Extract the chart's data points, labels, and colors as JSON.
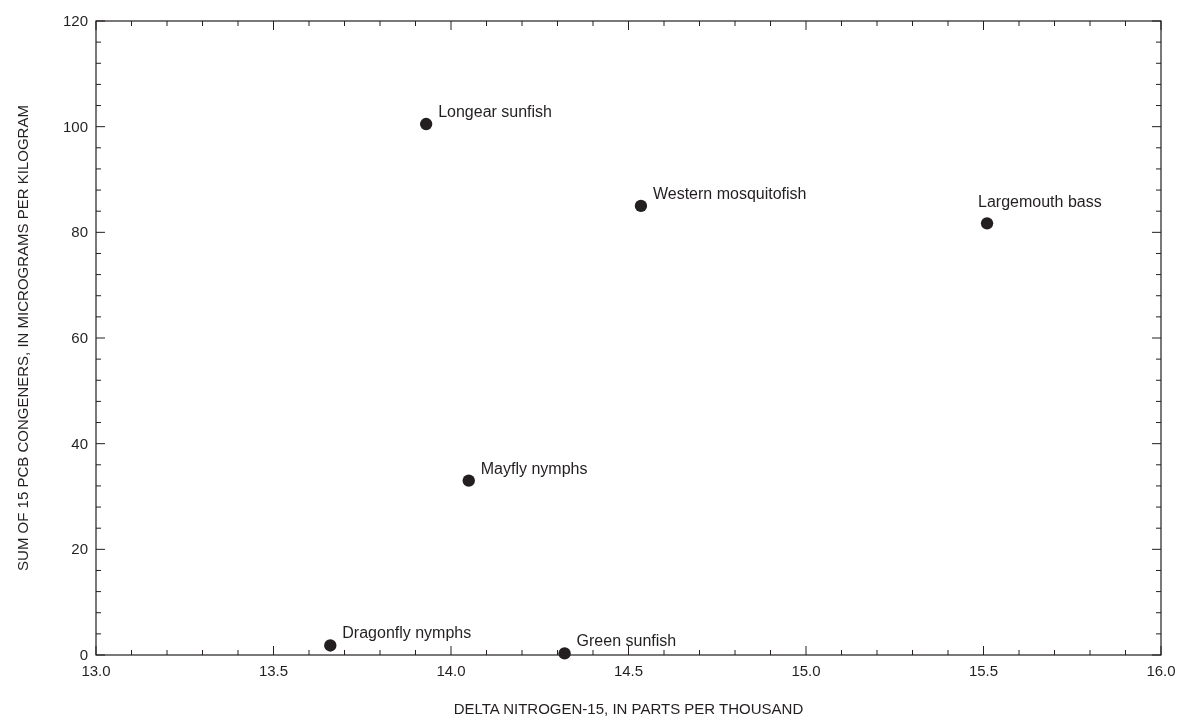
{
  "chart_data": {
    "type": "scatter",
    "xlabel": "DELTA NITROGEN-15, IN PARTS PER THOUSAND",
    "ylabel": "SUM OF 15 PCB CONGENERS, IN MICROGRAMS PER KILOGRAM",
    "series": [
      {
        "color": "#231f20",
        "x": [
          13.93,
          14.535,
          15.51,
          14.05,
          13.66,
          14.32
        ],
        "values": [
          100.5,
          85,
          81.7,
          33,
          1.8,
          0.3
        ]
      }
    ],
    "marker": "circle",
    "grid": false,
    "xlim": [
      13,
      16
    ],
    "ylim": [
      0,
      120
    ],
    "xticks": [
      {
        "value": 13,
        "label": "13.0"
      },
      {
        "value": 13.1,
        "label": null
      },
      {
        "value": 13.2,
        "label": null
      },
      {
        "value": 13.3,
        "label": null
      },
      {
        "value": 13.4,
        "label": null
      },
      {
        "value": 13.5,
        "label": "13.5"
      },
      {
        "value": 13.6,
        "label": null
      },
      {
        "value": 13.7,
        "label": null
      },
      {
        "value": 13.8,
        "label": null
      },
      {
        "value": 13.9,
        "label": null
      },
      {
        "value": 14,
        "label": "14.0"
      },
      {
        "value": 14.1,
        "label": null
      },
      {
        "value": 14.2,
        "label": null
      },
      {
        "value": 14.3,
        "label": null
      },
      {
        "value": 14.4,
        "label": null
      },
      {
        "value": 14.5,
        "label": "14.5"
      },
      {
        "value": 14.6,
        "label": null
      },
      {
        "value": 14.7,
        "label": null
      },
      {
        "value": 14.8,
        "label": null
      },
      {
        "value": 14.9,
        "label": null
      },
      {
        "value": 15,
        "label": "15.0"
      },
      {
        "value": 15.1,
        "label": null
      },
      {
        "value": 15.2,
        "label": null
      },
      {
        "value": 15.3,
        "label": null
      },
      {
        "value": 15.4,
        "label": null
      },
      {
        "value": 15.5,
        "label": "15.5"
      },
      {
        "value": 15.6,
        "label": null
      },
      {
        "value": 15.7,
        "label": null
      },
      {
        "value": 15.8,
        "label": null
      },
      {
        "value": 15.9,
        "label": null
      },
      {
        "value": 16,
        "label": "16.0"
      }
    ],
    "yticks": [
      0,
      {
        "value": 4,
        "label": null
      },
      {
        "value": 8,
        "label": null
      },
      {
        "value": 12,
        "label": null
      },
      {
        "value": 16,
        "label": null
      },
      20,
      {
        "value": 24,
        "label": null
      },
      {
        "value": 28,
        "label": null
      },
      {
        "value": 32,
        "label": null
      },
      {
        "value": 36,
        "label": null
      },
      40,
      {
        "value": 44,
        "label": null
      },
      {
        "value": 48,
        "label": null
      },
      {
        "value": 52,
        "label": null
      },
      {
        "value": 56,
        "label": null
      },
      60,
      {
        "value": 64,
        "label": null
      },
      {
        "value": 68,
        "label": null
      },
      {
        "value": 72,
        "label": null
      },
      {
        "value": 76,
        "label": null
      },
      80,
      {
        "value": 84,
        "label": null
      },
      {
        "value": 88,
        "label": null
      },
      {
        "value": 92,
        "label": null
      },
      {
        "value": 96,
        "label": null
      },
      100,
      {
        "value": 104,
        "label": null
      },
      {
        "value": 108,
        "label": null
      },
      {
        "value": 112,
        "label": null
      },
      {
        "value": 116,
        "label": null
      },
      120
    ],
    "annotations": [
      {
        "text": "Longear sunfish",
        "x": 13.93,
        "y": 100.5
      },
      {
        "text": "Western mosquitofish",
        "x": 14.535,
        "y": 85
      },
      {
        "text": "Largemouth bass",
        "x": 15.51,
        "y": 81.7
      },
      {
        "text": "Mayfly nymphs",
        "x": 14.05,
        "y": 33
      },
      {
        "text": "Dragonfly nymphs",
        "x": 13.66,
        "y": 1.8
      },
      {
        "text": "Green sunfish",
        "x": 14.32,
        "y": 0.3
      }
    ]
  }
}
